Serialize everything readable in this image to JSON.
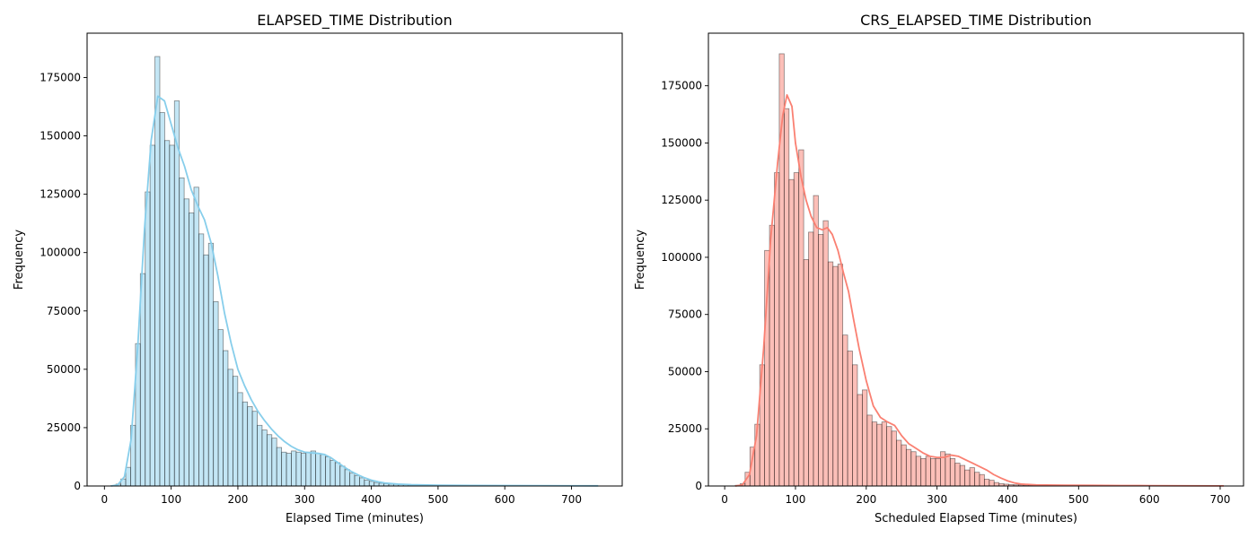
{
  "chart_data": [
    {
      "type": "histogram",
      "title": "ELAPSED_TIME Distribution",
      "xlabel": "Elapsed Time (minutes)",
      "ylabel": "Frequency",
      "xlim": [
        -26,
        776
      ],
      "ylim": [
        0,
        194000
      ],
      "xticks": [
        0,
        100,
        200,
        300,
        400,
        500,
        600,
        700
      ],
      "yticks": [
        0,
        25000,
        50000,
        75000,
        100000,
        125000,
        150000,
        175000
      ],
      "bar_color": "#87CEEB",
      "kde_color": "#87CEEB",
      "edge_color": "#000000",
      "bin_start": 10,
      "bin_width": 7.3,
      "values": [
        200,
        800,
        3000,
        8000,
        26000,
        61000,
        91000,
        126000,
        146000,
        184000,
        160000,
        148000,
        146000,
        165000,
        132000,
        123000,
        117000,
        128000,
        108000,
        99000,
        104000,
        79000,
        67000,
        58000,
        50000,
        47000,
        40000,
        36000,
        34000,
        32000,
        26000,
        24000,
        22000,
        20500,
        16500,
        14500,
        14000,
        15000,
        14500,
        14000,
        14500,
        15000,
        14000,
        13500,
        12500,
        11000,
        10000,
        8500,
        7000,
        5500,
        4500,
        3500,
        2500,
        2000,
        1500,
        1200,
        1000,
        800,
        700,
        600,
        550,
        500,
        450,
        400,
        380,
        350,
        320,
        300,
        280,
        260,
        240,
        220,
        200,
        190,
        180,
        170,
        160,
        150,
        140,
        130,
        120,
        110,
        100,
        95,
        90,
        85,
        80,
        75,
        70,
        65,
        60,
        55,
        50,
        45,
        40,
        35,
        30,
        25,
        20,
        15
      ],
      "kde": [
        [
          10,
          0
        ],
        [
          20,
          500
        ],
        [
          30,
          4000
        ],
        [
          40,
          20000
        ],
        [
          50,
          60000
        ],
        [
          60,
          110000
        ],
        [
          70,
          148000
        ],
        [
          80,
          167000
        ],
        [
          90,
          165000
        ],
        [
          100,
          155000
        ],
        [
          110,
          145000
        ],
        [
          120,
          137000
        ],
        [
          130,
          127000
        ],
        [
          140,
          120000
        ],
        [
          150,
          114000
        ],
        [
          160,
          104000
        ],
        [
          170,
          90000
        ],
        [
          180,
          74000
        ],
        [
          190,
          61000
        ],
        [
          200,
          50000
        ],
        [
          210,
          43000
        ],
        [
          220,
          37000
        ],
        [
          230,
          32000
        ],
        [
          240,
          28000
        ],
        [
          250,
          24500
        ],
        [
          260,
          21500
        ],
        [
          270,
          19000
        ],
        [
          280,
          17000
        ],
        [
          290,
          15500
        ],
        [
          300,
          14500
        ],
        [
          310,
          14200
        ],
        [
          320,
          14000
        ],
        [
          330,
          13500
        ],
        [
          340,
          12000
        ],
        [
          350,
          10000
        ],
        [
          360,
          8000
        ],
        [
          370,
          6200
        ],
        [
          380,
          4800
        ],
        [
          390,
          3500
        ],
        [
          400,
          2500
        ],
        [
          410,
          1800
        ],
        [
          420,
          1300
        ],
        [
          440,
          800
        ],
        [
          460,
          550
        ],
        [
          500,
          350
        ],
        [
          550,
          250
        ],
        [
          600,
          180
        ],
        [
          650,
          130
        ],
        [
          700,
          100
        ],
        [
          740,
          80
        ]
      ]
    },
    {
      "type": "histogram",
      "title": "CRS_ELAPSED_TIME Distribution",
      "xlabel": "Scheduled Elapsed Time (minutes)",
      "ylabel": "Frequency",
      "xlim": [
        -23,
        733
      ],
      "ylim": [
        0,
        198000
      ],
      "xticks": [
        0,
        100,
        200,
        300,
        400,
        500,
        600,
        700
      ],
      "yticks": [
        0,
        25000,
        50000,
        75000,
        100000,
        125000,
        150000,
        175000
      ],
      "bar_color": "#FA8072",
      "kde_color": "#FA8072",
      "edge_color": "#000000",
      "bin_start": 15,
      "bin_width": 6.9,
      "values": [
        300,
        1000,
        6000,
        17000,
        27000,
        53000,
        103000,
        114000,
        137000,
        189000,
        165000,
        134000,
        137000,
        147000,
        99000,
        111000,
        127000,
        110000,
        116000,
        98000,
        96000,
        97000,
        66000,
        59000,
        53000,
        40000,
        42000,
        31000,
        28000,
        27000,
        28000,
        26000,
        24000,
        20000,
        18000,
        16000,
        15000,
        13000,
        12000,
        13000,
        12000,
        12000,
        15000,
        14000,
        12000,
        10000,
        9000,
        7000,
        8000,
        6000,
        5000,
        3000,
        2500,
        1500,
        1000,
        800,
        600,
        500,
        450,
        400,
        350,
        320,
        300,
        280,
        260,
        240,
        220,
        200,
        190,
        180,
        170,
        160,
        150,
        140,
        130,
        120,
        110,
        100,
        95,
        90,
        85,
        80,
        75,
        70,
        65,
        60,
        55,
        50,
        45,
        40,
        35,
        30,
        25,
        20,
        15,
        10,
        8,
        6,
        4,
        2
      ],
      "kde": [
        [
          15,
          0
        ],
        [
          25,
          500
        ],
        [
          35,
          5000
        ],
        [
          45,
          22000
        ],
        [
          55,
          60000
        ],
        [
          65,
          108000
        ],
        [
          75,
          142000
        ],
        [
          82,
          162000
        ],
        [
          88,
          171000
        ],
        [
          95,
          166000
        ],
        [
          100,
          150000
        ],
        [
          108,
          135000
        ],
        [
          115,
          125000
        ],
        [
          122,
          118000
        ],
        [
          130,
          113000
        ],
        [
          138,
          112000
        ],
        [
          145,
          113000
        ],
        [
          152,
          110000
        ],
        [
          160,
          103000
        ],
        [
          168,
          93000
        ],
        [
          175,
          85000
        ],
        [
          182,
          73000
        ],
        [
          190,
          60000
        ],
        [
          200,
          46000
        ],
        [
          210,
          35000
        ],
        [
          220,
          30000
        ],
        [
          230,
          28000
        ],
        [
          240,
          26500
        ],
        [
          250,
          22000
        ],
        [
          260,
          18500
        ],
        [
          270,
          16500
        ],
        [
          280,
          14500
        ],
        [
          290,
          13000
        ],
        [
          300,
          12500
        ],
        [
          310,
          12500
        ],
        [
          320,
          13500
        ],
        [
          330,
          13000
        ],
        [
          340,
          11500
        ],
        [
          350,
          10000
        ],
        [
          360,
          8500
        ],
        [
          370,
          7000
        ],
        [
          380,
          5000
        ],
        [
          390,
          3500
        ],
        [
          400,
          2200
        ],
        [
          410,
          1300
        ],
        [
          420,
          800
        ],
        [
          440,
          500
        ],
        [
          480,
          350
        ],
        [
          520,
          280
        ],
        [
          560,
          200
        ],
        [
          600,
          150
        ],
        [
          650,
          100
        ],
        [
          705,
          60
        ]
      ]
    }
  ]
}
